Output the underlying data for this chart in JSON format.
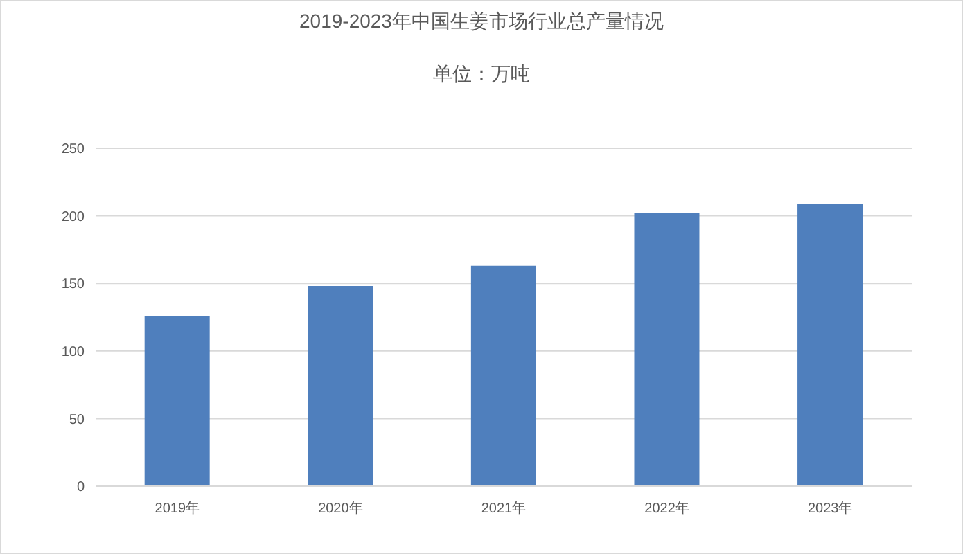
{
  "chart_data": {
    "type": "bar",
    "title": "2019-2023年中国生姜市场行业总产量情况",
    "subtitle": "单位：万吨",
    "categories": [
      "2019年",
      "2020年",
      "2021年",
      "2022年",
      "2023年"
    ],
    "values": [
      126,
      148,
      163,
      202,
      209
    ],
    "color": "#4f7fbd",
    "ylim": [
      0,
      250
    ],
    "yticks": [
      0,
      50,
      100,
      150,
      200,
      250
    ],
    "grid": "y"
  }
}
